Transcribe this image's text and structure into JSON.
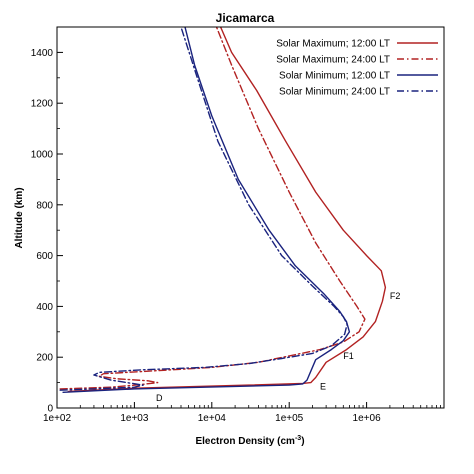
{
  "chart_data": {
    "type": "line",
    "title": "Jicamarca",
    "xlabel": "Electron Density (cm",
    "xlabel_sup": "-3",
    "xlabel_close": ")",
    "ylabel": "Altitude (km)",
    "x_scale": "log",
    "xlim": [
      100,
      10000000
    ],
    "ylim": [
      0,
      1500
    ],
    "x_ticks": [
      {
        "value": 100,
        "label": "1e+02"
      },
      {
        "value": 1000,
        "label": "1e+03"
      },
      {
        "value": 10000,
        "label": "1e+04"
      },
      {
        "value": 100000,
        "label": "1e+05"
      },
      {
        "value": 1000000,
        "label": "1e+06"
      }
    ],
    "y_ticks": [
      {
        "value": 0,
        "label": "0"
      },
      {
        "value": 200,
        "label": "200"
      },
      {
        "value": 400,
        "label": "400"
      },
      {
        "value": 600,
        "label": "600"
      },
      {
        "value": 800,
        "label": "800"
      },
      {
        "value": 1000,
        "label": "1000"
      },
      {
        "value": 1200,
        "label": "1200"
      },
      {
        "value": 1400,
        "label": "1400"
      }
    ],
    "legend_position": "top-right",
    "grid": false,
    "series": [
      {
        "name": "Solar Maximum; 12:00 LT",
        "color": "#b22222",
        "dash": "solid",
        "points": [
          [
            140,
            65
          ],
          [
            1000,
            78
          ],
          [
            30000,
            90
          ],
          [
            150000,
            97
          ],
          [
            190000,
            100
          ],
          [
            220000,
            120
          ],
          [
            300000,
            180
          ],
          [
            550000,
            230
          ],
          [
            900000,
            280
          ],
          [
            1300000,
            340
          ],
          [
            1600000,
            420
          ],
          [
            1750000,
            475
          ],
          [
            1550000,
            540
          ],
          [
            1000000,
            600
          ],
          [
            500000,
            700
          ],
          [
            220000,
            850
          ],
          [
            90000,
            1050
          ],
          [
            38000,
            1250
          ],
          [
            18000,
            1400
          ],
          [
            13000,
            1500
          ]
        ]
      },
      {
        "name": "Solar Maximum; 24:00 LT",
        "color": "#b22222",
        "dash": "dashdot",
        "points": [
          [
            110,
            75
          ],
          [
            500,
            82
          ],
          [
            1200,
            92
          ],
          [
            2000,
            100
          ],
          [
            1500,
            107
          ],
          [
            600,
            115
          ],
          [
            350,
            125
          ],
          [
            400,
            135
          ],
          [
            1500,
            145
          ],
          [
            10000,
            160
          ],
          [
            40000,
            180
          ],
          [
            100000,
            205
          ],
          [
            250000,
            230
          ],
          [
            500000,
            260
          ],
          [
            800000,
            300
          ],
          [
            950000,
            350
          ],
          [
            750000,
            400
          ],
          [
            450000,
            500
          ],
          [
            220000,
            650
          ],
          [
            100000,
            850
          ],
          [
            40000,
            1100
          ],
          [
            18000,
            1350
          ],
          [
            11500,
            1500
          ]
        ]
      },
      {
        "name": "Solar Minimum; 12:00 LT",
        "color": "#1a237e",
        "dash": "solid",
        "points": [
          [
            120,
            62
          ],
          [
            1000,
            75
          ],
          [
            20000,
            85
          ],
          [
            100000,
            90
          ],
          [
            150000,
            95
          ],
          [
            170000,
            110
          ],
          [
            220000,
            190
          ],
          [
            350000,
            230
          ],
          [
            500000,
            265
          ],
          [
            600000,
            300
          ],
          [
            550000,
            340
          ],
          [
            450000,
            380
          ],
          [
            280000,
            450
          ],
          [
            120000,
            560
          ],
          [
            55000,
            700
          ],
          [
            22000,
            900
          ],
          [
            10000,
            1150
          ],
          [
            6000,
            1350
          ],
          [
            4500,
            1500
          ]
        ]
      },
      {
        "name": "Solar Minimum; 24:00 LT",
        "color": "#1a237e",
        "dash": "dashdot",
        "points": [
          [
            110,
            70
          ],
          [
            300,
            75
          ],
          [
            1000,
            82
          ],
          [
            1300,
            90
          ],
          [
            800,
            100
          ],
          [
            500,
            110
          ],
          [
            300,
            130
          ],
          [
            350,
            140
          ],
          [
            1200,
            150
          ],
          [
            8000,
            160
          ],
          [
            30000,
            175
          ],
          [
            80000,
            195
          ],
          [
            200000,
            215
          ],
          [
            350000,
            245
          ],
          [
            520000,
            290
          ],
          [
            560000,
            330
          ],
          [
            500000,
            360
          ],
          [
            380000,
            400
          ],
          [
            200000,
            480
          ],
          [
            80000,
            600
          ],
          [
            30000,
            800
          ],
          [
            12000,
            1050
          ],
          [
            6500,
            1300
          ],
          [
            4000,
            1500
          ]
        ]
      }
    ],
    "annotations": [
      {
        "label": "F2",
        "x": 2000000,
        "y": 440
      },
      {
        "label": "F1",
        "x": 500000,
        "y": 205
      },
      {
        "label": "E",
        "x": 250000,
        "y": 85
      },
      {
        "label": "D",
        "x": 1900,
        "y": 40
      }
    ]
  }
}
